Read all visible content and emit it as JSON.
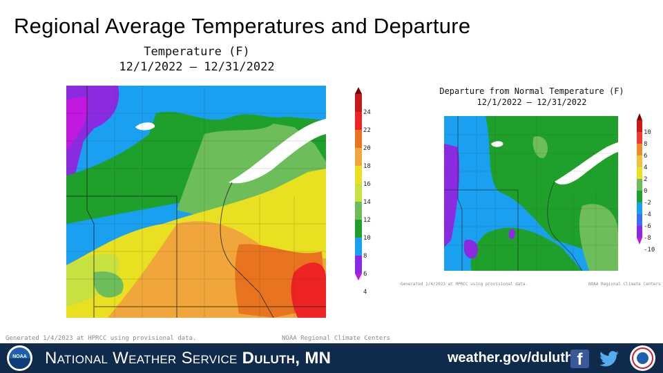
{
  "slide": {
    "title": "Regional Average Temperatures and Departure"
  },
  "left_map": {
    "title_line1": "Temperature (F)",
    "title_line2": "12/1/2022 – 12/31/2022",
    "colorbar": {
      "labels": [
        "24",
        "22",
        "20",
        "18",
        "16",
        "14",
        "12",
        "10",
        "8",
        "6",
        "4"
      ],
      "colors": [
        "#7a0000",
        "#c41a1a",
        "#ee2424",
        "#e8741f",
        "#f0a63a",
        "#e8e020",
        "#c8e040",
        "#6dbe5a",
        "#1fa02a",
        "#1aa0f0",
        "#8a2be2",
        "#c318e0"
      ]
    },
    "footnote_left": "Generated 1/4/2023 at HPRCC using provisional data.",
    "footnote_right": "NOAA Regional Climate Centers"
  },
  "right_map": {
    "title_line1": "Departure from Normal Temperature (F)",
    "title_line2": "12/1/2022 – 12/31/2022",
    "colorbar": {
      "labels": [
        "10",
        "8",
        "6",
        "4",
        "2",
        "0",
        "-2",
        "-4",
        "-6",
        "-8",
        "-10"
      ],
      "colors": [
        "#7a0000",
        "#d01818",
        "#ee3a30",
        "#f08a30",
        "#f0c040",
        "#e8e020",
        "#6dbe5a",
        "#1fa02a",
        "#1aa0f0",
        "#3b6ff0",
        "#8a2be2",
        "#c318e0"
      ]
    },
    "footnote_left": "Generated 1/4/2023 at HPRCC using provisional data.",
    "footnote_right": "NOAA Regional Climate Centers"
  },
  "banner": {
    "org_prefix": "National Weather Service",
    "office": "Duluth, MN",
    "url": "weather.gov/duluth",
    "noaa_logo_text": "NOAA"
  },
  "icons": [
    "noaa-logo",
    "facebook-icon",
    "twitter-icon",
    "nws-logo"
  ]
}
